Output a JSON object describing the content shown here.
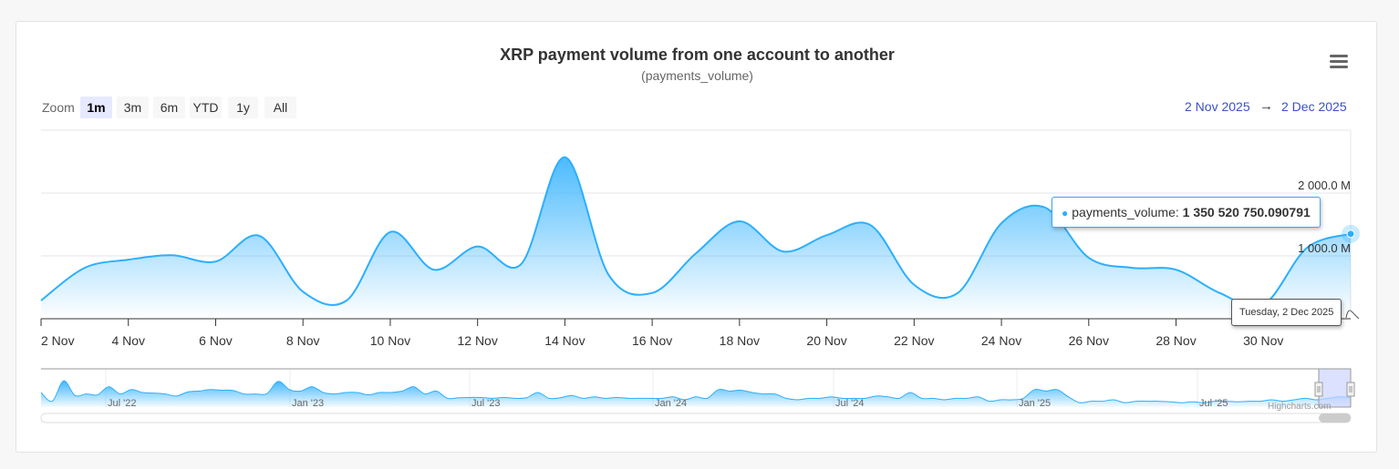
{
  "header": {
    "title": "XRP payment volume from one account to another",
    "subtitle": "(payments_volume)",
    "menu_icon": "hamburger-menu-icon"
  },
  "range_selector": {
    "zoom_label": "Zoom",
    "buttons": [
      {
        "label": "1m",
        "active": true
      },
      {
        "label": "3m",
        "active": false
      },
      {
        "label": "6m",
        "active": false
      },
      {
        "label": "YTD",
        "active": false
      },
      {
        "label": "1y",
        "active": false
      },
      {
        "label": "All",
        "active": false
      }
    ],
    "from": "2 Nov 2025",
    "arrow": "→",
    "to": "2 Dec 2025"
  },
  "tooltip": {
    "series": "payments_volume:",
    "value": "1 350 520 750.090791",
    "date": "Tuesday, 2 Dec 2025"
  },
  "navigator": {
    "labels": [
      "Jul '22",
      "Jan '23",
      "Jul '23",
      "Jan '24",
      "Jul '24",
      "Jan '25",
      "Jul '25"
    ]
  },
  "credits": "Highcharts.com",
  "colors": {
    "series": "#2caffe",
    "range_text": "#3a50c9",
    "navigator_mask": "#ccd4ff"
  },
  "chart_data": {
    "type": "area",
    "title": "XRP payment volume from one account to another",
    "subtitle": "(payments_volume)",
    "xlabel": "",
    "ylabel": "",
    "series": [
      {
        "name": "payments_volume",
        "x": [
          "2 Nov",
          "3 Nov",
          "4 Nov",
          "5 Nov",
          "6 Nov",
          "7 Nov",
          "8 Nov",
          "9 Nov",
          "10 Nov",
          "11 Nov",
          "12 Nov",
          "13 Nov",
          "14 Nov",
          "15 Nov",
          "16 Nov",
          "17 Nov",
          "18 Nov",
          "19 Nov",
          "20 Nov",
          "21 Nov",
          "22 Nov",
          "23 Nov",
          "24 Nov",
          "25 Nov",
          "26 Nov",
          "27 Nov",
          "28 Nov",
          "29 Nov",
          "30 Nov",
          "1 Dec",
          "2 Dec"
        ],
        "values_millions": [
          290,
          810,
          940,
          1010,
          910,
          1320,
          430,
          290,
          1380,
          780,
          1150,
          870,
          2570,
          700,
          410,
          1040,
          1550,
          1070,
          1330,
          1490,
          540,
          410,
          1520,
          1770,
          970,
          810,
          780,
          410,
          220,
          1130,
          1350.52
        ]
      }
    ],
    "x_tick_labels": [
      "2 Nov",
      "4 Nov",
      "6 Nov",
      "8 Nov",
      "10 Nov",
      "12 Nov",
      "14 Nov",
      "16 Nov",
      "18 Nov",
      "20 Nov",
      "22 Nov",
      "24 Nov",
      "26 Nov",
      "28 Nov",
      "30 Nov"
    ],
    "y_tick_labels": [
      "1 000.0 M",
      "2 000.0 M"
    ],
    "ylim_millions": [
      0,
      3000
    ],
    "grid": true,
    "legend": "none"
  }
}
